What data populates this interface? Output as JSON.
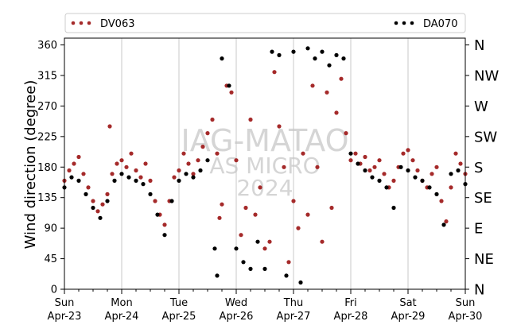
{
  "chart_data": {
    "type": "scatter",
    "ylabel": "Wind direction (degree)",
    "ylim": [
      0,
      370
    ],
    "yticks": [
      0,
      45,
      90,
      135,
      180,
      225,
      270,
      315,
      360
    ],
    "compass": [
      "N",
      "NE",
      "E",
      "SE",
      "S",
      "SW",
      "W",
      "NW",
      "N"
    ],
    "xlim": [
      "2024-04-23",
      "2024-04-30"
    ],
    "xticks": [
      {
        "day": "Sun",
        "date": "Apr-23"
      },
      {
        "day": "Mon",
        "date": "Apr-24"
      },
      {
        "day": "Tue",
        "date": "Apr-25"
      },
      {
        "day": "Wed",
        "date": "Apr-26"
      },
      {
        "day": "Thu",
        "date": "Apr-27"
      },
      {
        "day": "Fri",
        "date": "Apr-28"
      },
      {
        "day": "Sat",
        "date": "Apr-29"
      },
      {
        "day": "Sun",
        "date": "Apr-30"
      }
    ],
    "grid": "vertical",
    "legend_position": "top",
    "watermark": [
      "IAG-MATAO",
      "AS MICRO",
      "2024"
    ],
    "series": [
      {
        "name": "DV063",
        "color": "#a52a2a",
        "points": [
          [
            "2024-04-23 00:00",
            160
          ],
          [
            "2024-04-23 02:00",
            175
          ],
          [
            "2024-04-23 04:00",
            185
          ],
          [
            "2024-04-23 06:00",
            195
          ],
          [
            "2024-04-23 08:00",
            170
          ],
          [
            "2024-04-23 10:00",
            150
          ],
          [
            "2024-04-23 12:00",
            130
          ],
          [
            "2024-04-23 14:00",
            115
          ],
          [
            "2024-04-23 16:00",
            125
          ],
          [
            "2024-04-23 18:00",
            140
          ],
          [
            "2024-04-23 19:00",
            240
          ],
          [
            "2024-04-23 20:00",
            170
          ],
          [
            "2024-04-23 22:00",
            185
          ],
          [
            "2024-04-24 00:00",
            190
          ],
          [
            "2024-04-24 02:00",
            180
          ],
          [
            "2024-04-24 04:00",
            200
          ],
          [
            "2024-04-24 06:00",
            175
          ],
          [
            "2024-04-24 08:00",
            165
          ],
          [
            "2024-04-24 10:00",
            185
          ],
          [
            "2024-04-24 12:00",
            160
          ],
          [
            "2024-04-24 14:00",
            130
          ],
          [
            "2024-04-24 16:00",
            110
          ],
          [
            "2024-04-24 18:00",
            95
          ],
          [
            "2024-04-24 20:00",
            130
          ],
          [
            "2024-04-24 22:00",
            165
          ],
          [
            "2024-04-25 00:00",
            175
          ],
          [
            "2024-04-25 02:00",
            200
          ],
          [
            "2024-04-25 04:00",
            185
          ],
          [
            "2024-04-25 06:00",
            170
          ],
          [
            "2024-04-25 08:00",
            190
          ],
          [
            "2024-04-25 10:00",
            210
          ],
          [
            "2024-04-25 12:00",
            230
          ],
          [
            "2024-04-25 14:00",
            250
          ],
          [
            "2024-04-25 16:00",
            200
          ],
          [
            "2024-04-25 17:00",
            105
          ],
          [
            "2024-04-25 18:00",
            125
          ],
          [
            "2024-04-25 20:00",
            300
          ],
          [
            "2024-04-25 22:00",
            290
          ],
          [
            "2024-04-26 00:00",
            190
          ],
          [
            "2024-04-26 02:00",
            80
          ],
          [
            "2024-04-26 04:00",
            120
          ],
          [
            "2024-04-26 06:00",
            250
          ],
          [
            "2024-04-26 08:00",
            110
          ],
          [
            "2024-04-26 10:00",
            150
          ],
          [
            "2024-04-26 12:00",
            60
          ],
          [
            "2024-04-26 14:00",
            70
          ],
          [
            "2024-04-26 16:00",
            320
          ],
          [
            "2024-04-26 18:00",
            240
          ],
          [
            "2024-04-26 20:00",
            180
          ],
          [
            "2024-04-26 22:00",
            40
          ],
          [
            "2024-04-27 00:00",
            130
          ],
          [
            "2024-04-27 02:00",
            90
          ],
          [
            "2024-04-27 04:00",
            200
          ],
          [
            "2024-04-27 06:00",
            110
          ],
          [
            "2024-04-27 08:00",
            300
          ],
          [
            "2024-04-27 10:00",
            180
          ],
          [
            "2024-04-27 12:00",
            70
          ],
          [
            "2024-04-27 14:00",
            290
          ],
          [
            "2024-04-27 16:00",
            120
          ],
          [
            "2024-04-27 18:00",
            260
          ],
          [
            "2024-04-27 20:00",
            310
          ],
          [
            "2024-04-27 22:00",
            230
          ],
          [
            "2024-04-28 00:00",
            190
          ],
          [
            "2024-04-28 02:00",
            200
          ],
          [
            "2024-04-28 04:00",
            185
          ],
          [
            "2024-04-28 06:00",
            195
          ],
          [
            "2024-04-28 08:00",
            175
          ],
          [
            "2024-04-28 10:00",
            180
          ],
          [
            "2024-04-28 12:00",
            190
          ],
          [
            "2024-04-28 14:00",
            170
          ],
          [
            "2024-04-28 16:00",
            150
          ],
          [
            "2024-04-28 18:00",
            160
          ],
          [
            "2024-04-28 20:00",
            180
          ],
          [
            "2024-04-28 22:00",
            200
          ],
          [
            "2024-04-29 00:00",
            205
          ],
          [
            "2024-04-29 02:00",
            190
          ],
          [
            "2024-04-29 04:00",
            175
          ],
          [
            "2024-04-29 06:00",
            160
          ],
          [
            "2024-04-29 08:00",
            150
          ],
          [
            "2024-04-29 10:00",
            170
          ],
          [
            "2024-04-29 12:00",
            180
          ],
          [
            "2024-04-29 14:00",
            130
          ],
          [
            "2024-04-29 16:00",
            100
          ],
          [
            "2024-04-29 18:00",
            150
          ],
          [
            "2024-04-29 20:00",
            200
          ],
          [
            "2024-04-29 22:00",
            185
          ],
          [
            "2024-04-30 00:00",
            170
          ]
        ]
      },
      {
        "name": "DA070",
        "color": "#000000",
        "points": [
          [
            "2024-04-23 00:00",
            150
          ],
          [
            "2024-04-23 03:00",
            165
          ],
          [
            "2024-04-23 06:00",
            160
          ],
          [
            "2024-04-23 09:00",
            140
          ],
          [
            "2024-04-23 12:00",
            120
          ],
          [
            "2024-04-23 15:00",
            105
          ],
          [
            "2024-04-23 18:00",
            130
          ],
          [
            "2024-04-23 21:00",
            160
          ],
          [
            "2024-04-24 00:00",
            170
          ],
          [
            "2024-04-24 03:00",
            165
          ],
          [
            "2024-04-24 06:00",
            160
          ],
          [
            "2024-04-24 09:00",
            155
          ],
          [
            "2024-04-24 12:00",
            140
          ],
          [
            "2024-04-24 15:00",
            110
          ],
          [
            "2024-04-24 18:00",
            80
          ],
          [
            "2024-04-24 21:00",
            130
          ],
          [
            "2024-04-25 00:00",
            160
          ],
          [
            "2024-04-25 03:00",
            170
          ],
          [
            "2024-04-25 06:00",
            165
          ],
          [
            "2024-04-25 09:00",
            175
          ],
          [
            "2024-04-25 12:00",
            190
          ],
          [
            "2024-04-25 15:00",
            60
          ],
          [
            "2024-04-25 16:00",
            20
          ],
          [
            "2024-04-25 18:00",
            340
          ],
          [
            "2024-04-25 21:00",
            300
          ],
          [
            "2024-04-26 00:00",
            60
          ],
          [
            "2024-04-26 03:00",
            40
          ],
          [
            "2024-04-26 06:00",
            30
          ],
          [
            "2024-04-26 09:00",
            70
          ],
          [
            "2024-04-26 12:00",
            30
          ],
          [
            "2024-04-26 15:00",
            350
          ],
          [
            "2024-04-26 18:00",
            345
          ],
          [
            "2024-04-26 21:00",
            20
          ],
          [
            "2024-04-27 00:00",
            350
          ],
          [
            "2024-04-27 03:00",
            10
          ],
          [
            "2024-04-27 06:00",
            355
          ],
          [
            "2024-04-27 09:00",
            340
          ],
          [
            "2024-04-27 12:00",
            350
          ],
          [
            "2024-04-27 15:00",
            330
          ],
          [
            "2024-04-27 18:00",
            345
          ],
          [
            "2024-04-27 21:00",
            340
          ],
          [
            "2024-04-28 00:00",
            200
          ],
          [
            "2024-04-28 03:00",
            185
          ],
          [
            "2024-04-28 06:00",
            175
          ],
          [
            "2024-04-28 09:00",
            165
          ],
          [
            "2024-04-28 12:00",
            160
          ],
          [
            "2024-04-28 15:00",
            150
          ],
          [
            "2024-04-28 18:00",
            120
          ],
          [
            "2024-04-28 21:00",
            180
          ],
          [
            "2024-04-29 00:00",
            175
          ],
          [
            "2024-04-29 03:00",
            165
          ],
          [
            "2024-04-29 06:00",
            160
          ],
          [
            "2024-04-29 09:00",
            150
          ],
          [
            "2024-04-29 12:00",
            140
          ],
          [
            "2024-04-29 15:00",
            95
          ],
          [
            "2024-04-29 18:00",
            170
          ],
          [
            "2024-04-29 21:00",
            175
          ],
          [
            "2024-04-30 00:00",
            155
          ]
        ]
      }
    ]
  }
}
